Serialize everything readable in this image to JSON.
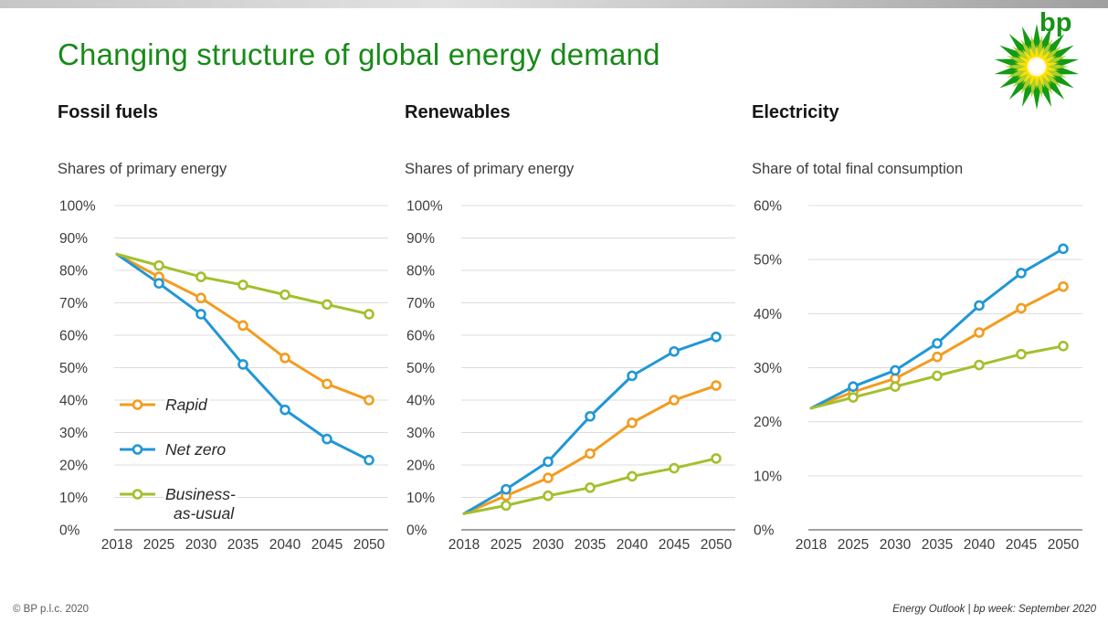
{
  "page": {
    "title": "Changing structure of global energy demand",
    "logo_wordmark": "bp",
    "footer_left": "© BP p.l.c. 2020",
    "footer_right": "Energy Outlook  |  bp week: September 2020"
  },
  "colors": {
    "title_green": "#188a18",
    "rapid_orange": "#f39c1f",
    "netzero_blue": "#2197d5",
    "bau_green": "#a2c02c",
    "gridline_gray": "#dcdcdc",
    "axis_dark": "#6b6b6b",
    "helios_outer_green": "#149a14",
    "helios_mid_yellowgreen": "#aacf2f",
    "helios_inner_yellow": "#ffe000"
  },
  "chart_data": [
    {
      "type": "line",
      "title": "Fossil fuels",
      "subtitle": "Shares of primary energy",
      "x": [
        "2018",
        "2025",
        "2030",
        "2035",
        "2040",
        "2045",
        "2050"
      ],
      "ylim": [
        0,
        100
      ],
      "ytick_step": 10,
      "grid": true,
      "legend": true,
      "legend_position": "inside-left",
      "series": [
        {
          "name": "Rapid",
          "color": "#f39c1f",
          "legend_lines": [
            "Rapid"
          ],
          "values": [
            85,
            78,
            71.5,
            63,
            53,
            45,
            40
          ]
        },
        {
          "name": "Net zero",
          "color": "#2197d5",
          "legend_lines": [
            "Net zero"
          ],
          "values": [
            85,
            76,
            66.5,
            51,
            37,
            28,
            21.5
          ]
        },
        {
          "name": "Business-as-usual",
          "color": "#a2c02c",
          "legend_lines": [
            "Business-",
            "as-usual"
          ],
          "values": [
            85,
            81.5,
            78,
            75.5,
            72.5,
            69.5,
            66.5
          ]
        }
      ]
    },
    {
      "type": "line",
      "title": "Renewables",
      "subtitle": "Shares of primary energy",
      "x": [
        "2018",
        "2025",
        "2030",
        "2035",
        "2040",
        "2045",
        "2050"
      ],
      "ylim": [
        0,
        100
      ],
      "ytick_step": 10,
      "grid": true,
      "legend": false,
      "series": [
        {
          "name": "Rapid",
          "color": "#f39c1f",
          "values": [
            5,
            10.5,
            16,
            23.5,
            33,
            40,
            44.5
          ]
        },
        {
          "name": "Net zero",
          "color": "#2197d5",
          "values": [
            5,
            12.5,
            21,
            35,
            47.5,
            55,
            59.5
          ]
        },
        {
          "name": "Business-as-usual",
          "color": "#a2c02c",
          "values": [
            5,
            7.5,
            10.5,
            13,
            16.5,
            19,
            22
          ]
        }
      ]
    },
    {
      "type": "line",
      "title": "Electricity",
      "subtitle": "Share of total final consumption",
      "x": [
        "2018",
        "2025",
        "2030",
        "2035",
        "2040",
        "2045",
        "2050"
      ],
      "ylim": [
        0,
        60
      ],
      "ytick_step": 10,
      "grid": true,
      "legend": false,
      "series": [
        {
          "name": "Rapid",
          "color": "#f39c1f",
          "values": [
            22.5,
            25.5,
            28,
            32,
            36.5,
            41,
            45
          ]
        },
        {
          "name": "Net zero",
          "color": "#2197d5",
          "values": [
            22.5,
            26.5,
            29.5,
            34.5,
            41.5,
            47.5,
            52
          ]
        },
        {
          "name": "Business-as-usual",
          "color": "#a2c02c",
          "values": [
            22.5,
            24.5,
            26.5,
            28.5,
            30.5,
            32.5,
            34
          ]
        }
      ]
    }
  ]
}
